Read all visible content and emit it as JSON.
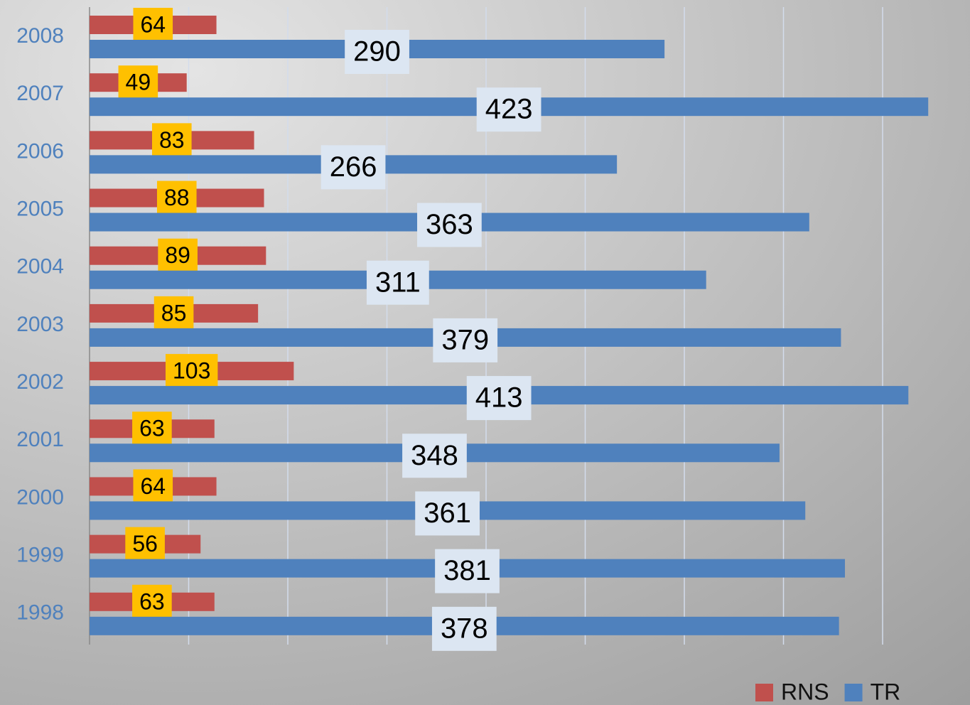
{
  "chart_data": {
    "type": "hbar",
    "categories": [
      "2008",
      "2007",
      "2006",
      "2005",
      "2004",
      "2003",
      "2002",
      "2001",
      "2000",
      "1999",
      "1998"
    ],
    "series": [
      {
        "name": "RNS",
        "color": "#c0504d",
        "values": [
          64,
          49,
          83,
          88,
          89,
          85,
          103,
          63,
          64,
          56,
          63
        ]
      },
      {
        "name": "TR",
        "color": "#4f81bd",
        "values": [
          290,
          423,
          266,
          363,
          311,
          379,
          413,
          348,
          361,
          381,
          378
        ]
      }
    ],
    "xlim": [
      0,
      443
    ],
    "xticks": [
      0,
      50,
      100,
      150,
      200,
      250,
      300,
      350,
      400
    ],
    "grid": true,
    "legend": "bottom-right"
  }
}
